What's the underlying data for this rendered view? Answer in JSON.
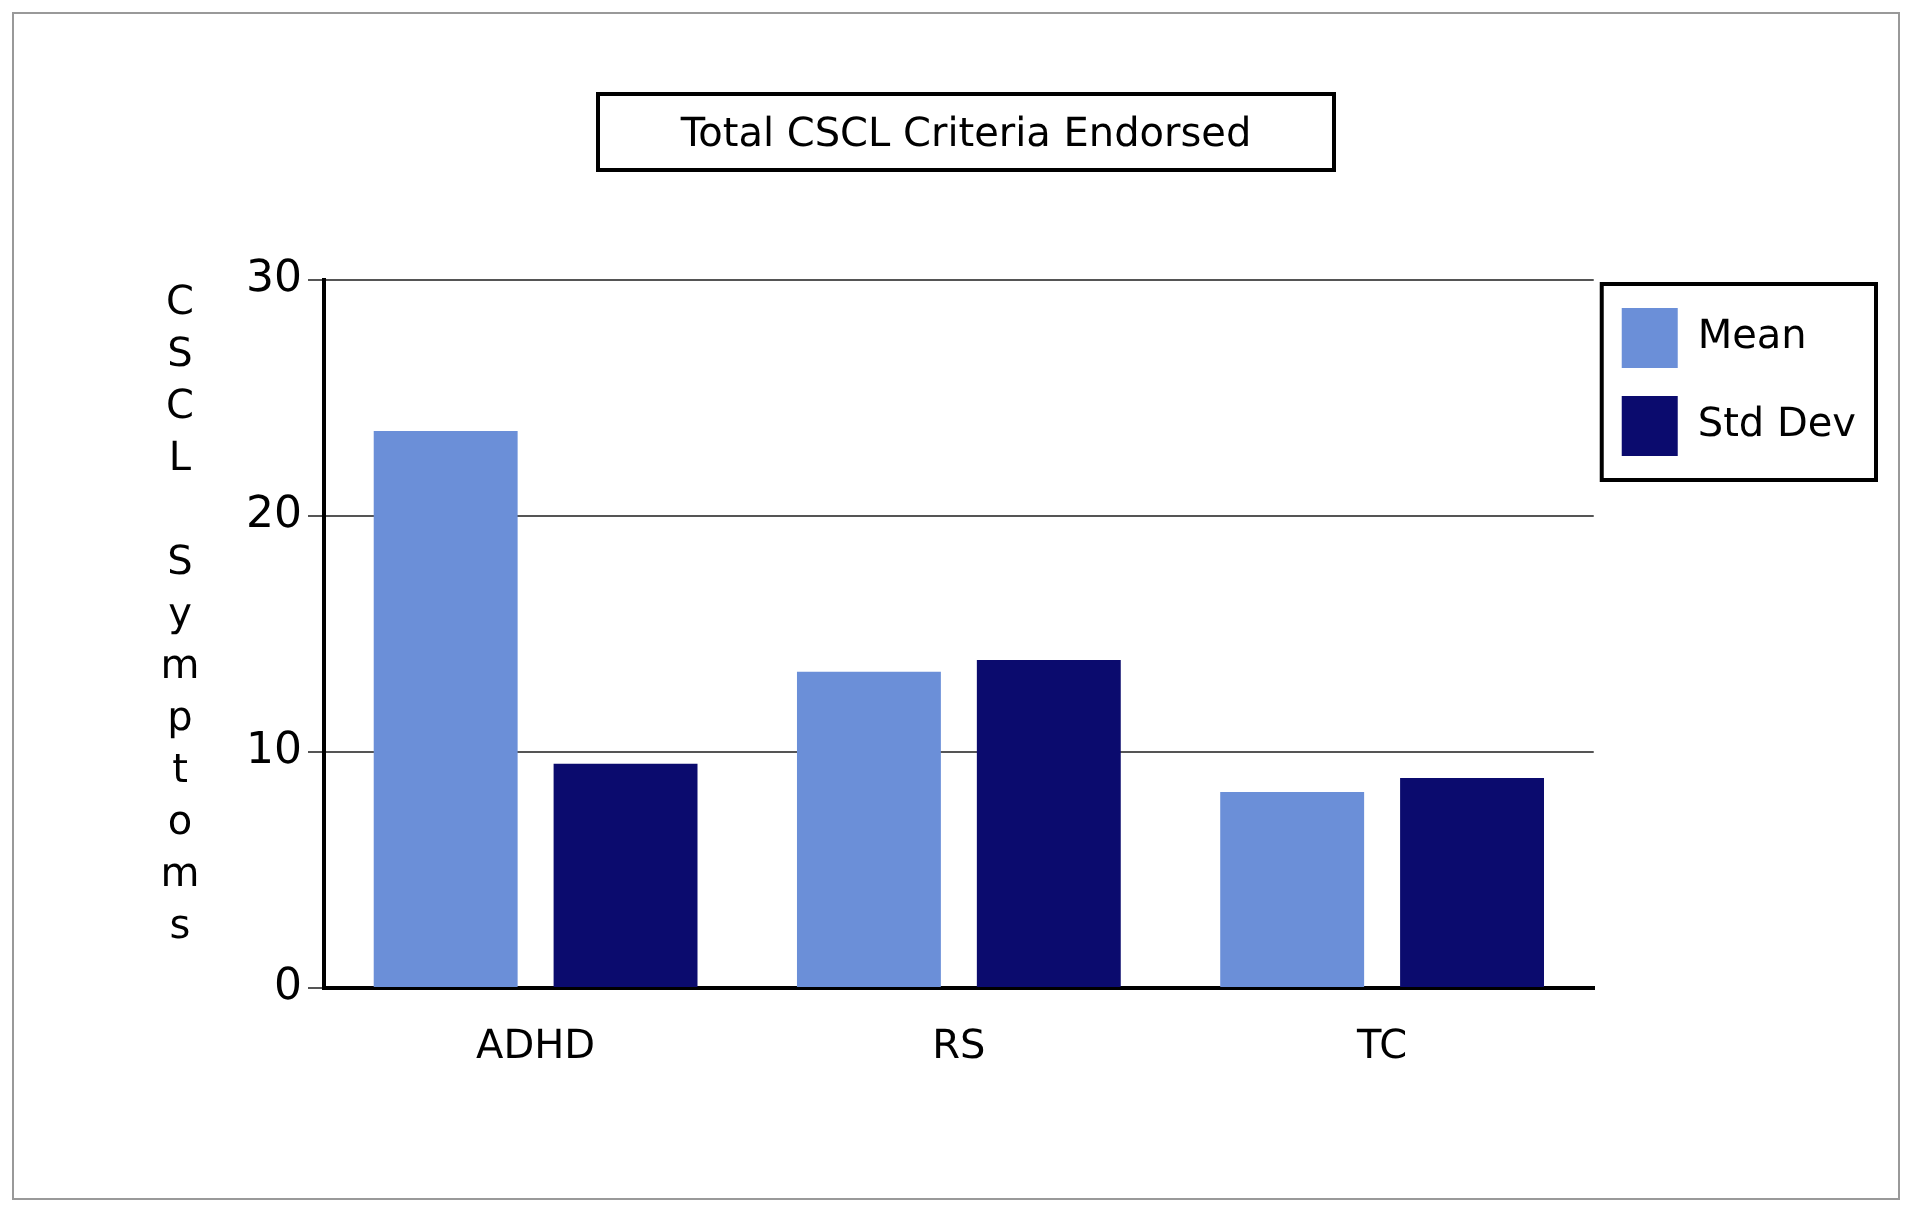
{
  "chart_data": {
    "type": "bar",
    "title": "Total CSCL Criteria Endorsed",
    "ylabel": "CSCL Symptoms",
    "categories": [
      "ADHD",
      "RS",
      "TC"
    ],
    "series": [
      {
        "name": "Mean",
        "color": "#6b8fd8",
        "values": [
          23.6,
          13.4,
          8.3
        ]
      },
      {
        "name": "Std Dev",
        "color": "#0b0b6e",
        "values": [
          9.5,
          13.9,
          8.9
        ]
      }
    ],
    "ylim": [
      0,
      30
    ],
    "yticks": [
      0,
      10,
      20,
      30
    ],
    "grid": "y",
    "legend": "top right"
  }
}
